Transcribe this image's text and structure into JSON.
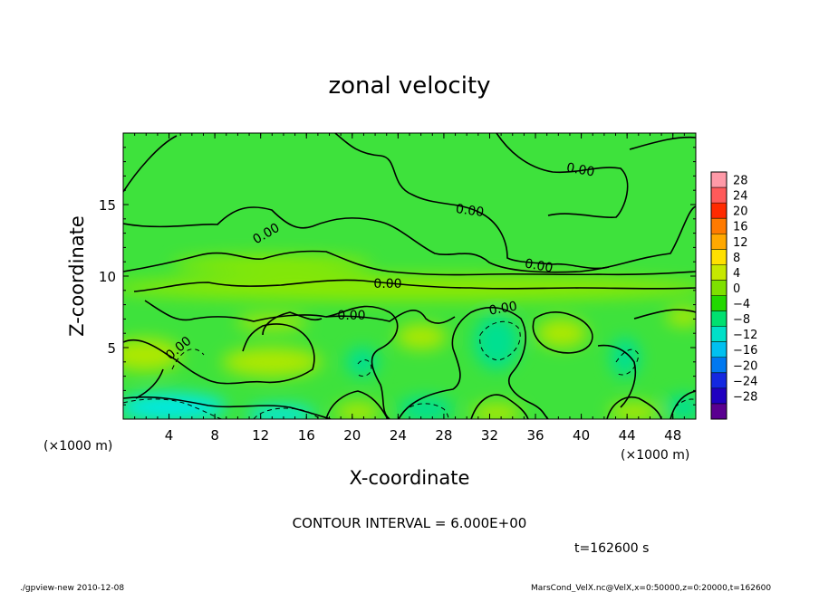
{
  "chart_data": {
    "type": "heatmap",
    "title": "zonal velocity",
    "xlabel": "X-coordinate",
    "ylabel": "Z-coordinate",
    "x_unit": "(×1000 m)",
    "y_unit": "(×1000 m)",
    "xlim": [
      0,
      50
    ],
    "ylim": [
      0,
      20
    ],
    "x_ticks": [
      4,
      8,
      12,
      16,
      20,
      24,
      28,
      32,
      36,
      40,
      44,
      48
    ],
    "y_ticks": [
      5,
      10,
      15
    ],
    "contour_interval_text": "CONTOUR INTERVAL = 6.000E+00",
    "contour_label": "0.00",
    "time_text": "t=162600 s",
    "colorbar": {
      "levels": [
        28,
        24,
        20,
        16,
        12,
        8,
        4,
        0,
        -4,
        -8,
        -12,
        -16,
        -20,
        -24,
        -28
      ],
      "level_labels": [
        "28",
        "24",
        "20",
        "16",
        "12",
        "8",
        "4",
        "0",
        "−4",
        "−8",
        "−12",
        "−16",
        "−20",
        "−24",
        "−28"
      ],
      "colors": [
        "#ff9aa8",
        "#ff5a5a",
        "#ff2a00",
        "#ff7a00",
        "#ffa800",
        "#ffe000",
        "#c6e800",
        "#7ee000",
        "#22d800",
        "#00e070",
        "#00e0c8",
        "#00c0f0",
        "#0078f0",
        "#1428e0",
        "#2000c0",
        "#5a0090"
      ]
    },
    "field_colors": {
      "green": "#3ee23c",
      "light_green": "#8ee800",
      "yellow_green": "#aee800",
      "cyan_green": "#00e090",
      "cyan": "#00e8e0"
    },
    "footer_left": "./gpview-new  2010-12-08",
    "footer_right": "MarsCond_VelX.nc@VelX,x=0:50000,z=0:20000,t=162600"
  }
}
